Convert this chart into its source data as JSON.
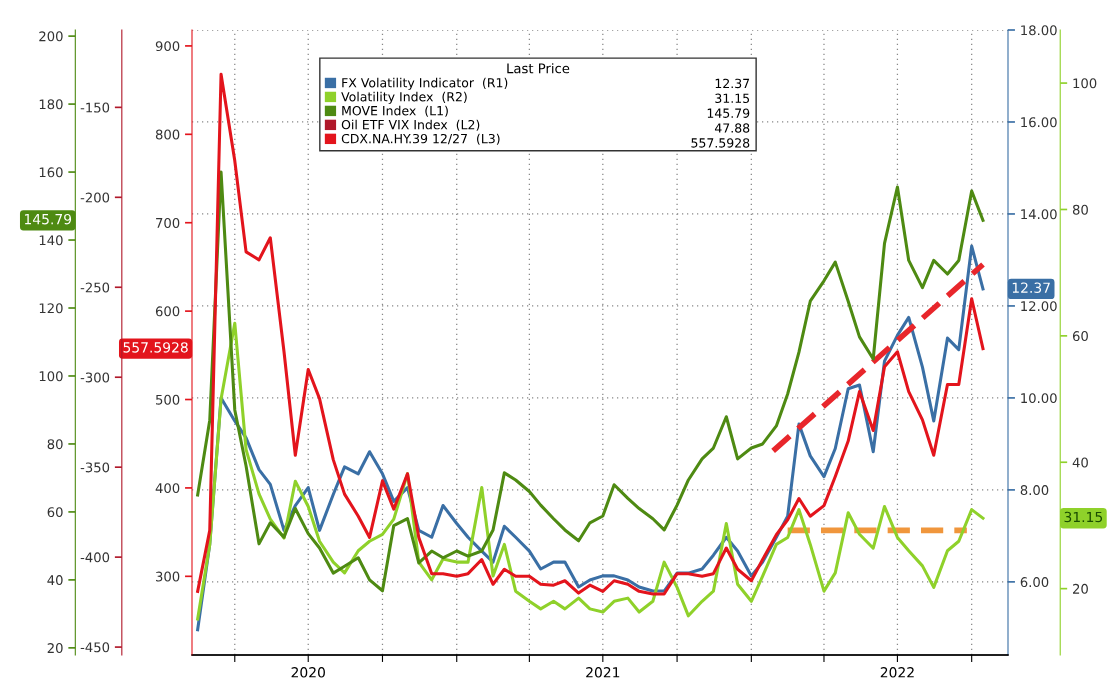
{
  "chart_data": [
    {
      "type": "line",
      "legend_title": "Last Price",
      "legend": "top",
      "grid": true,
      "x": [
        "2020-02-15",
        "2020-03-01",
        "2020-03-15",
        "2020-04-01",
        "2020-04-15",
        "2020-05-01",
        "2020-05-15",
        "2020-06-01",
        "2020-06-15",
        "2020-07-01",
        "2020-07-15",
        "2020-08-01",
        "2020-08-15",
        "2020-09-01",
        "2020-09-15",
        "2020-10-01",
        "2020-10-15",
        "2020-11-01",
        "2020-11-15",
        "2020-12-01",
        "2020-12-15",
        "2021-01-01",
        "2021-01-15",
        "2021-02-01",
        "2021-02-15",
        "2021-03-01",
        "2021-03-15",
        "2021-04-01",
        "2021-04-15",
        "2021-05-01",
        "2021-05-15",
        "2021-06-01",
        "2021-06-15",
        "2021-07-01",
        "2021-07-15",
        "2021-08-01",
        "2021-08-15",
        "2021-09-01",
        "2021-09-15",
        "2021-10-01",
        "2021-10-15",
        "2021-11-01",
        "2021-11-15",
        "2021-12-01",
        "2021-12-15",
        "2022-01-01",
        "2022-01-15",
        "2022-02-01",
        "2022-02-15",
        "2022-03-01",
        "2022-03-15",
        "2022-04-01",
        "2022-04-15",
        "2022-05-01",
        "2022-05-15",
        "2022-06-01",
        "2022-06-15",
        "2022-07-01",
        "2022-07-15",
        "2022-08-01",
        "2022-08-15",
        "2022-09-01",
        "2022-09-15",
        "2022-10-01",
        "2022-10-15"
      ],
      "xlim": [
        "2020-02-08",
        "2022-11-15"
      ],
      "xticks": [
        {
          "value": "2020-04-01",
          "label": null
        },
        {
          "value": "2020-07-01",
          "label": "2020"
        },
        {
          "value": "2020-10-01",
          "label": null
        },
        {
          "value": "2021-01-01",
          "label": null
        },
        {
          "value": "2021-04-01",
          "label": null
        },
        {
          "value": "2021-07-01",
          "label": "2021"
        },
        {
          "value": "2021-10-01",
          "label": null
        },
        {
          "value": "2022-01-01",
          "label": null
        },
        {
          "value": "2022-04-01",
          "label": null
        },
        {
          "value": "2022-07-01",
          "label": "2022"
        },
        {
          "value": "2022-10-01",
          "label": null
        }
      ],
      "ylim": [
        4.41,
        18
      ],
      "yticks": [
        {
          "value": 6,
          "label": "6.00"
        },
        {
          "value": 8,
          "label": "8.00"
        },
        {
          "value": 10,
          "label": "10.00"
        },
        {
          "value": 12,
          "label": "12.00"
        },
        {
          "value": 14,
          "label": "14.00"
        },
        {
          "value": 16,
          "label": "16.00"
        },
        {
          "value": 18,
          "label": "18.00"
        }
      ],
      "y2lim": [
        9.5,
        108.4
      ],
      "y2ticks": [
        20,
        40,
        60,
        80,
        100
      ],
      "series": [
        {
          "name": "FX Volatility Indicator  (R1)",
          "color": "#3a6fa5",
          "values": [
            4.96,
            6.82,
            10.0,
            9.5,
            9.13,
            8.44,
            8.12,
            7.12,
            7.66,
            8.05,
            7.12,
            7.9,
            8.5,
            8.35,
            8.83,
            8.35,
            7.75,
            8.05,
            7.12,
            6.97,
            7.66,
            7.27,
            6.97,
            6.67,
            6.43,
            7.21,
            6.97,
            6.67,
            6.28,
            6.43,
            6.43,
            5.89,
            6.04,
            6.13,
            6.13,
            6.04,
            5.89,
            5.8,
            5.8,
            6.19,
            6.19,
            6.28,
            6.58,
            6.97,
            6.67,
            6.13,
            6.43,
            6.97,
            7.43,
            9.43,
            8.74,
            8.29,
            8.9,
            10.2,
            10.28,
            8.83,
            10.8,
            11.36,
            11.75,
            10.67,
            9.5,
            11.3,
            11.05,
            13.3,
            12.37
          ]
        },
        {
          "name": "Volatility Index  (R2)",
          "color": "#8fd12a",
          "axis": "y2",
          "values": [
            15.2,
            27,
            50,
            62,
            42,
            35,
            31,
            28,
            37,
            33,
            27.5,
            24.2,
            22.5,
            26,
            27.5,
            28.6,
            31,
            38.2,
            24.2,
            21.4,
            24.7,
            24.2,
            24.2,
            36,
            22,
            27,
            19.6,
            18,
            16.8,
            18,
            16.8,
            18.5,
            16.8,
            16.3,
            18,
            18.5,
            16.3,
            18,
            24.2,
            20.2,
            15.7,
            18,
            19.6,
            30.3,
            20.7,
            18,
            22,
            27,
            28.1,
            32.5,
            27,
            19.6,
            22.5,
            32,
            28.6,
            26.4,
            33,
            28.1,
            26,
            23.6,
            20.2,
            26,
            27.5,
            32.5,
            31.15
          ]
        },
        {
          "type": "line",
          "color": "#e8262b",
          "line_style": "dashed",
          "x": [
            "2022-01-28",
            "2022-10-15"
          ],
          "values": [
            8.85,
            12.9
          ]
        },
        {
          "type": "line",
          "color": "#f0963c",
          "line_style": "dashed",
          "x": [
            "2022-02-15",
            "2022-09-25"
          ],
          "values": [
            7.12,
            7.12
          ]
        }
      ],
      "annotations": [
        "12.37",
        "31.15"
      ]
    },
    {
      "type": "line",
      "legend": "top",
      "xlim": [
        "2020-02-08",
        "2022-11-15"
      ],
      "ylim": [
        17.9,
        201.8
      ],
      "yticks": [
        20,
        40,
        60,
        80,
        100,
        120,
        140,
        160,
        180,
        200
      ],
      "series": [
        {
          "name": "MOVE Index  (L1)",
          "color": "#4e8a12",
          "x": [
            "2020-02-15",
            "2020-03-01",
            "2020-03-15",
            "2020-04-01",
            "2020-04-15",
            "2020-05-01",
            "2020-05-15",
            "2020-06-01",
            "2020-06-15",
            "2020-07-01",
            "2020-07-15",
            "2020-08-01",
            "2020-08-15",
            "2020-09-01",
            "2020-09-15",
            "2020-10-01",
            "2020-10-15",
            "2020-11-01",
            "2020-11-15",
            "2020-12-01",
            "2020-12-15",
            "2021-01-01",
            "2021-01-15",
            "2021-02-01",
            "2021-02-15",
            "2021-03-01",
            "2021-03-15",
            "2021-04-01",
            "2021-04-15",
            "2021-05-01",
            "2021-05-15",
            "2021-06-01",
            "2021-06-15",
            "2021-07-01",
            "2021-07-15",
            "2021-08-01",
            "2021-08-15",
            "2021-09-01",
            "2021-09-15",
            "2021-10-01",
            "2021-10-15",
            "2021-11-01",
            "2021-11-15",
            "2021-12-01",
            "2021-12-15",
            "2022-01-01",
            "2022-01-15",
            "2022-02-01",
            "2022-02-15",
            "2022-03-01",
            "2022-03-15",
            "2022-04-01",
            "2022-04-15",
            "2022-05-01",
            "2022-05-15",
            "2022-06-01",
            "2022-06-15",
            "2022-07-01",
            "2022-07-15",
            "2022-08-01",
            "2022-08-15",
            "2022-09-01",
            "2022-09-15",
            "2022-10-01",
            "2022-10-15"
          ],
          "values": [
            65,
            87,
            160,
            90,
            73.5,
            50.6,
            56.8,
            52.6,
            61,
            53.6,
            49.4,
            42,
            44,
            46.5,
            40,
            36.8,
            56,
            58,
            45,
            48.5,
            46.5,
            48.5,
            47,
            48.5,
            54.7,
            71.5,
            69.4,
            66,
            62,
            58,
            54.7,
            51.5,
            56.8,
            58.8,
            68,
            64,
            61,
            58,
            54.7,
            62,
            69.4,
            75.6,
            78.8,
            88,
            75.6,
            78.8,
            80,
            85.3,
            94.7,
            107,
            122,
            128,
            133.5,
            122,
            111.5,
            105,
            139,
            155.6,
            134,
            126,
            134,
            130,
            134,
            154.4,
            145.79
          ]
        }
      ],
      "annotations": [
        "145.79"
      ]
    },
    {
      "type": "line",
      "legend": "top",
      "xlim": [
        "2020-02-08",
        "2022-11-15"
      ],
      "ylim": [
        211,
        918
      ],
      "yticks": [
        300,
        400,
        500,
        600,
        700,
        800,
        900
      ],
      "y2lim": [
        -454.4,
        -107
      ],
      "y2ticks": [
        -450,
        -400,
        -350,
        -300,
        -250,
        -200,
        -150
      ],
      "series": [
        {
          "name": "Oil ETF VIX Index  (L2)",
          "color": "#b0182a",
          "axis": "y2"
        },
        {
          "name": "CDX.NA.HY.39 12/27  (L3)",
          "color": "#e3141c",
          "x": [
            "2020-02-15",
            "2020-03-01",
            "2020-03-15",
            "2020-04-01",
            "2020-04-15",
            "2020-05-01",
            "2020-05-15",
            "2020-06-01",
            "2020-06-15",
            "2020-07-01",
            "2020-07-15",
            "2020-08-01",
            "2020-08-15",
            "2020-09-01",
            "2020-09-15",
            "2020-10-01",
            "2020-10-15",
            "2020-11-01",
            "2020-11-15",
            "2020-12-01",
            "2020-12-15",
            "2021-01-01",
            "2021-01-15",
            "2021-02-01",
            "2021-02-15",
            "2021-03-01",
            "2021-03-15",
            "2021-04-01",
            "2021-04-15",
            "2021-05-01",
            "2021-05-15",
            "2021-06-01",
            "2021-06-15",
            "2021-07-01",
            "2021-07-15",
            "2021-08-01",
            "2021-08-15",
            "2021-09-01",
            "2021-09-15",
            "2021-10-01",
            "2021-10-15",
            "2021-11-01",
            "2021-11-15",
            "2021-12-01",
            "2021-12-15",
            "2022-01-01",
            "2022-01-15",
            "2022-02-01",
            "2022-02-15",
            "2022-03-01",
            "2022-03-15",
            "2022-04-01",
            "2022-04-15",
            "2022-05-01",
            "2022-05-15",
            "2022-06-01",
            "2022-06-15",
            "2022-07-01",
            "2022-07-15",
            "2022-08-01",
            "2022-08-15",
            "2022-09-01",
            "2022-09-15",
            "2022-10-01",
            "2022-10-15"
          ],
          "values": [
            283,
            352,
            868,
            770,
            667,
            658,
            683,
            554,
            437,
            534,
            501,
            432,
            393,
            368,
            344,
            408,
            376,
            416,
            344,
            303,
            303,
            300,
            303,
            319,
            291,
            308,
            300,
            300,
            291,
            290,
            295,
            281,
            290,
            283,
            295,
            291,
            283,
            280,
            280,
            303,
            303,
            300,
            303,
            332,
            308,
            295,
            319,
            347,
            364,
            388,
            368,
            380,
            413,
            453,
            509,
            465,
            537,
            554,
            509,
            477,
            437,
            517,
            517,
            614,
            557.5928
          ]
        }
      ],
      "annotations": [
        "47.88",
        "557.5928"
      ]
    }
  ]
}
